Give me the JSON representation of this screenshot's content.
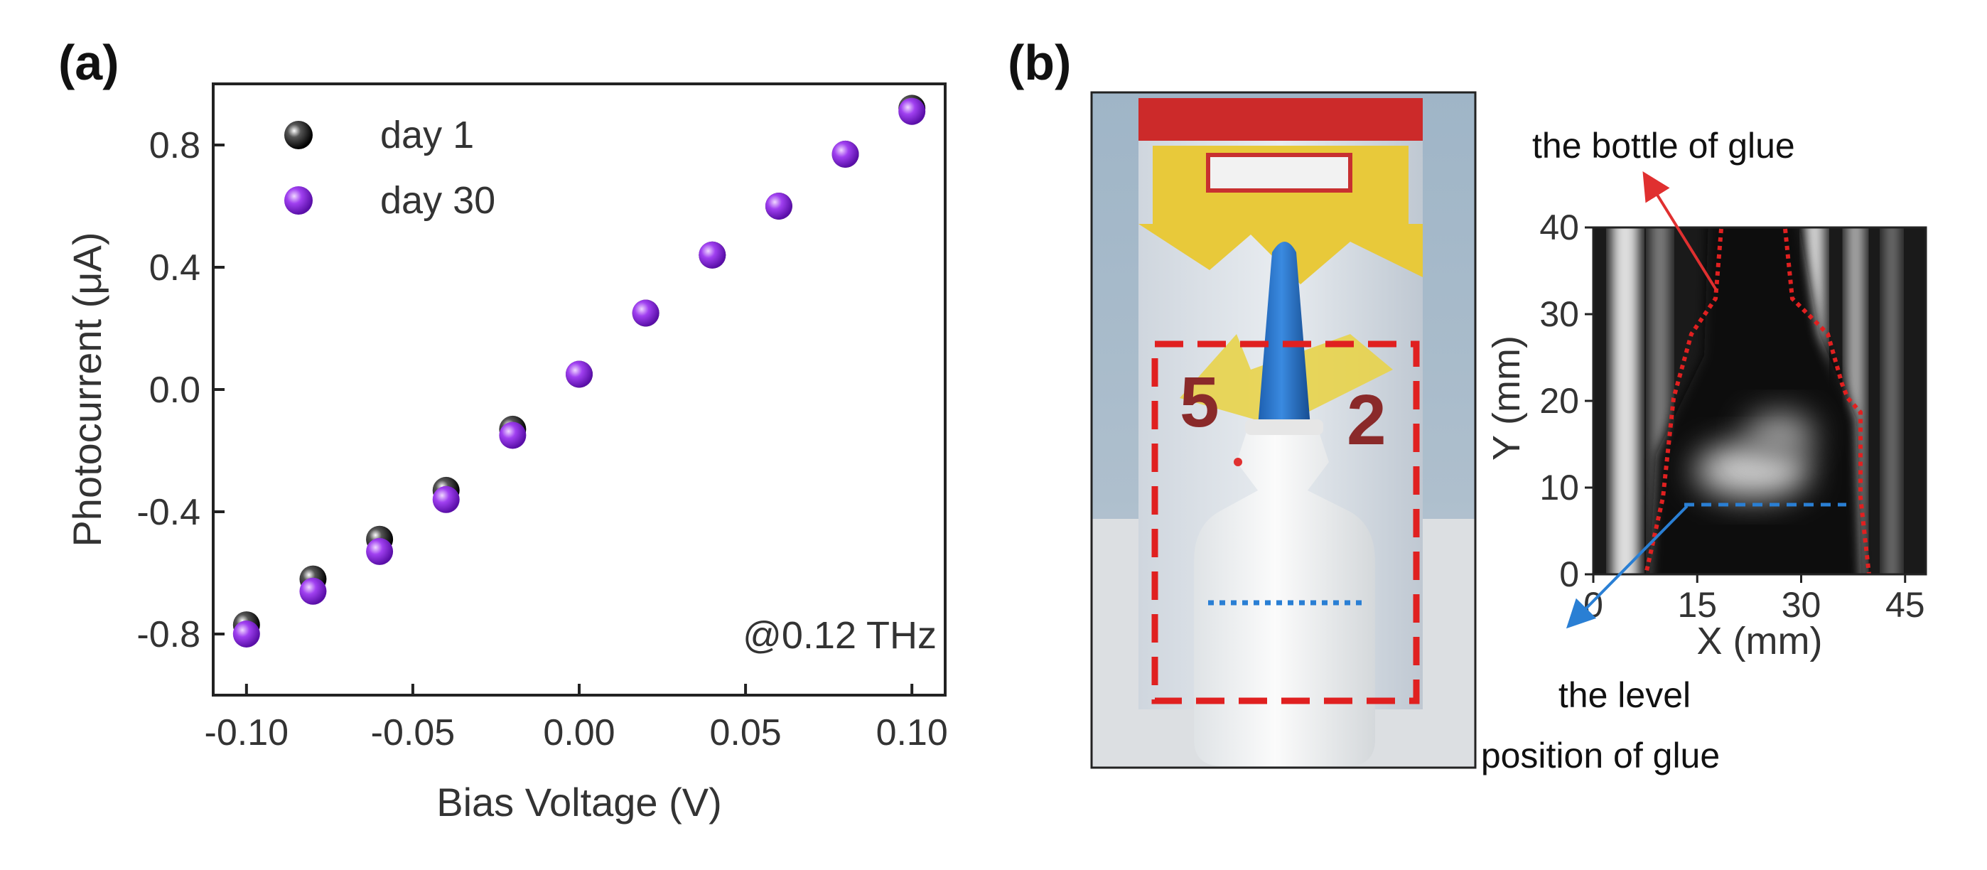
{
  "panel_a_label": "(a)",
  "panel_b_label": "(b)",
  "chart_data": [
    {
      "type": "scatter",
      "xlabel": "Bias Voltage (V)",
      "ylabel": "Photocurrent (μA)",
      "xlim": [
        -0.11,
        0.11
      ],
      "ylim": [
        -1.0,
        1.0
      ],
      "xticks": [
        "-0.10",
        "-0.05",
        "0.00",
        "0.05",
        "0.10"
      ],
      "xtick_values": [
        -0.1,
        -0.05,
        0.0,
        0.05,
        0.1
      ],
      "yticks": [
        "-0.8",
        "-0.4",
        "0.0",
        "0.4",
        "0.8"
      ],
      "ytick_values": [
        -0.8,
        -0.4,
        0.0,
        0.4,
        0.8
      ],
      "annotation": "@0.12 THz",
      "legend_position": "top-left",
      "x": [
        -0.1,
        -0.08,
        -0.06,
        -0.04,
        -0.02,
        0.0,
        0.02,
        0.04,
        0.06,
        0.08,
        0.1
      ],
      "series": [
        {
          "name": "day 1",
          "color": "#111111",
          "values": [
            -0.77,
            -0.62,
            -0.49,
            -0.33,
            -0.13,
            0.05,
            0.25,
            0.44,
            0.6,
            0.77,
            0.92
          ]
        },
        {
          "name": "day 30",
          "color": "#8a2be2",
          "values": [
            -0.8,
            -0.66,
            -0.53,
            -0.36,
            -0.15,
            0.05,
            0.25,
            0.44,
            0.6,
            0.77,
            0.91
          ]
        }
      ]
    },
    {
      "type": "heatmap",
      "xlabel": "X (mm)",
      "ylabel": "Y (mm)",
      "xlim": [
        0,
        48
      ],
      "ylim": [
        0,
        40
      ],
      "xticks": [
        "0",
        "15",
        "30",
        "45"
      ],
      "xtick_values": [
        0,
        15,
        30,
        45
      ],
      "yticks": [
        "0",
        "10",
        "20",
        "30",
        "40"
      ],
      "ytick_values": [
        0,
        10,
        20,
        30,
        40
      ],
      "annotations": [
        "the bottle of glue",
        "the level",
        "position of glue"
      ]
    }
  ]
}
